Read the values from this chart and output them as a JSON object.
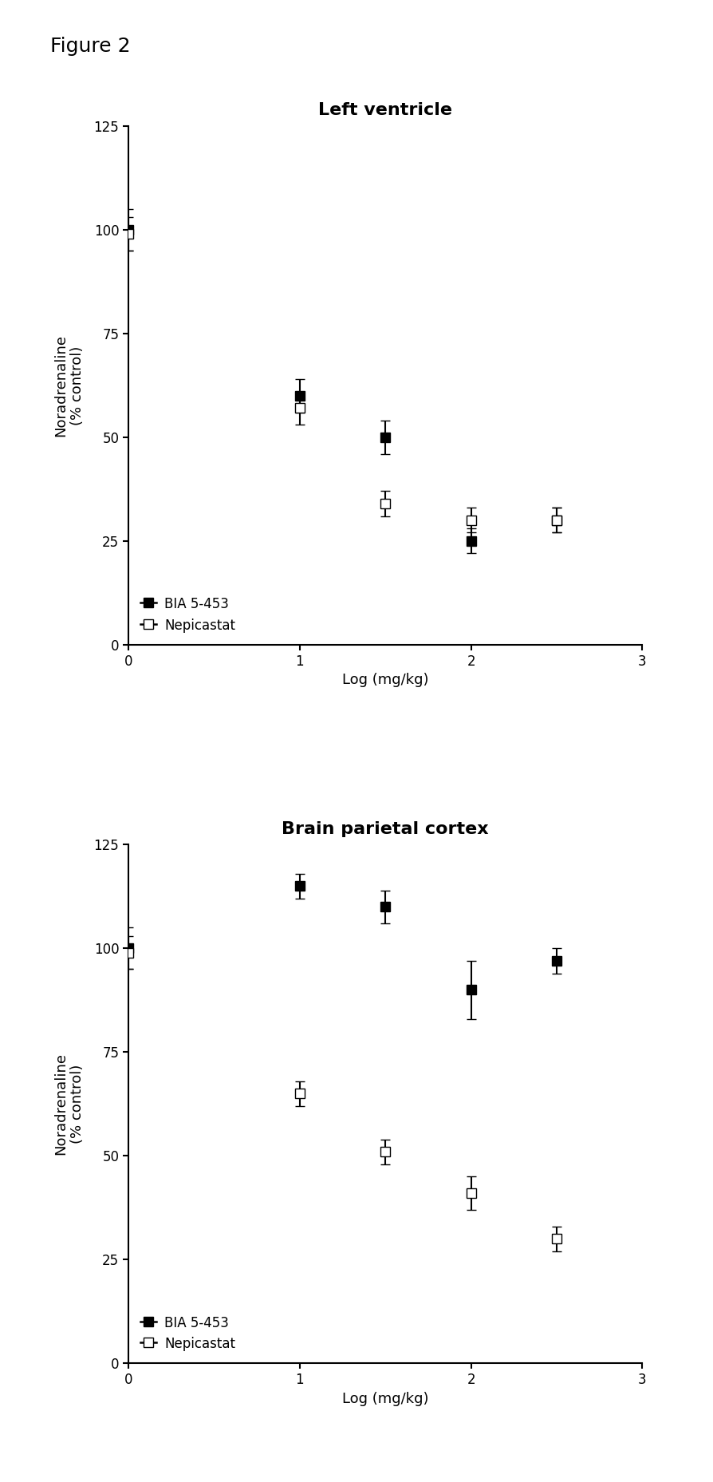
{
  "figure_label": "Figure 2",
  "figure_label_fontsize": 18,
  "plot1": {
    "title": "Left ventricle",
    "title_fontsize": 16,
    "title_fontweight": "bold",
    "xlabel": "Log (mg/kg)",
    "ylabel": "Noradrenaline\n(% control)",
    "xlim": [
      0,
      3
    ],
    "ylim": [
      0,
      125
    ],
    "xticks": [
      0,
      1,
      2,
      3
    ],
    "yticks": [
      0,
      25,
      50,
      75,
      100,
      125
    ],
    "BIA_x": [
      0,
      1,
      1.5,
      2,
      2.5
    ],
    "BIA_y": [
      100,
      60,
      50,
      25,
      30
    ],
    "BIA_yerr": [
      5,
      4,
      4,
      3,
      3
    ],
    "NEP_x": [
      0,
      1,
      1.5,
      2,
      2.5
    ],
    "NEP_y": [
      99,
      57,
      34,
      30,
      30
    ],
    "NEP_yerr": [
      4,
      4,
      3,
      3,
      3
    ],
    "legend_loc": "lower left",
    "legend_labels": [
      "BIA 5-453",
      "Nepicastat"
    ]
  },
  "plot2": {
    "title": "Brain parietal cortex",
    "title_fontsize": 16,
    "title_fontweight": "bold",
    "xlabel": "Log (mg/kg)",
    "ylabel": "Noradrenaline\n(% control)",
    "xlim": [
      0,
      3
    ],
    "ylim": [
      0,
      125
    ],
    "xticks": [
      0,
      1,
      2,
      3
    ],
    "yticks": [
      0,
      25,
      50,
      75,
      100,
      125
    ],
    "BIA_x": [
      0,
      1,
      1.5,
      2,
      2.5
    ],
    "BIA_y": [
      100,
      115,
      110,
      90,
      97
    ],
    "BIA_yerr": [
      5,
      3,
      4,
      7,
      3
    ],
    "NEP_x": [
      0,
      1,
      1.5,
      2,
      2.5
    ],
    "NEP_y": [
      99,
      65,
      51,
      41,
      30
    ],
    "NEP_yerr": [
      4,
      3,
      3,
      4,
      3
    ],
    "legend_loc": "lower left",
    "legend_labels": [
      "BIA 5-453",
      "Nepicastat"
    ]
  },
  "line_color": "#000000",
  "marker_BIA": "s",
  "marker_NEP": "s",
  "markersize": 8,
  "linewidth": 1.8,
  "capsize": 4,
  "elinewidth": 1.5,
  "axis_fontsize": 13,
  "tick_fontsize": 12,
  "label_fontsize": 13,
  "legend_fontsize": 12,
  "background_color": "#ffffff"
}
